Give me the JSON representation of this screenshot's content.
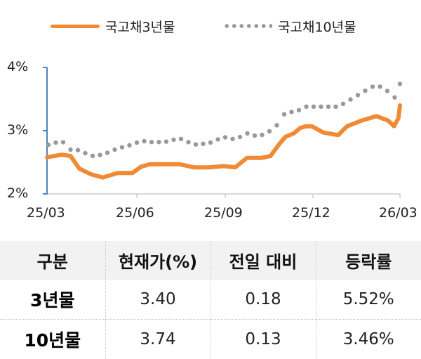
{
  "legend": {
    "series_3y": "국고채3년물",
    "series_10y": "국고채10년물"
  },
  "colors": {
    "series_3y": "#f08a34",
    "series_10y": "#999999",
    "axis": "#4f81bd",
    "grid": "#d9d9d9",
    "header_bg": "#f2f2f2"
  },
  "chart_data": {
    "type": "line",
    "title": "",
    "xlabel": "",
    "ylabel": "",
    "ylim": [
      2,
      4
    ],
    "yticks": [
      "2%",
      "3%",
      "4%"
    ],
    "xticks": [
      "25/03",
      "25/06",
      "25/09",
      "25/12",
      "26/03"
    ],
    "grid": false,
    "legend_position": "top",
    "x": [
      0.0,
      0.5,
      0.8,
      1.1,
      1.5,
      1.9,
      2.4,
      2.9,
      3.2,
      3.5,
      4.0,
      4.5,
      5.0,
      5.5,
      6.0,
      6.4,
      6.8,
      7.0,
      7.3,
      7.6,
      7.9,
      8.1,
      8.4,
      8.6,
      8.8,
      9.0,
      9.4,
      9.9,
      10.2,
      10.7,
      11.2,
      11.6,
      11.8,
      11.95,
      12.0
    ],
    "series": [
      {
        "name": "국고채3년물",
        "style": "solid",
        "values": [
          2.58,
          2.62,
          2.6,
          2.4,
          2.31,
          2.26,
          2.33,
          2.33,
          2.43,
          2.47,
          2.47,
          2.47,
          2.42,
          2.42,
          2.44,
          2.42,
          2.57,
          2.57,
          2.57,
          2.6,
          2.79,
          2.9,
          2.96,
          3.04,
          3.07,
          3.07,
          2.97,
          2.93,
          3.07,
          3.16,
          3.23,
          3.16,
          3.07,
          3.2,
          3.4
        ]
      },
      {
        "name": "국고채10년물",
        "style": "dotted",
        "values": [
          2.77,
          2.84,
          2.7,
          2.69,
          2.6,
          2.62,
          2.72,
          2.78,
          2.84,
          2.82,
          2.82,
          2.88,
          2.78,
          2.8,
          2.9,
          2.86,
          2.96,
          2.92,
          2.93,
          3.0,
          3.12,
          3.29,
          3.3,
          3.33,
          3.38,
          3.38,
          3.38,
          3.38,
          3.46,
          3.6,
          3.73,
          3.62,
          3.51,
          3.62,
          3.74
        ]
      }
    ]
  },
  "table": {
    "headers": [
      "구분",
      "현재가(%)",
      "전일 대비",
      "등락률"
    ],
    "rows": [
      [
        "3년물",
        "3.40",
        "0.18",
        "5.52%"
      ],
      [
        "10년물",
        "3.74",
        "0.13",
        "3.46%"
      ]
    ]
  }
}
